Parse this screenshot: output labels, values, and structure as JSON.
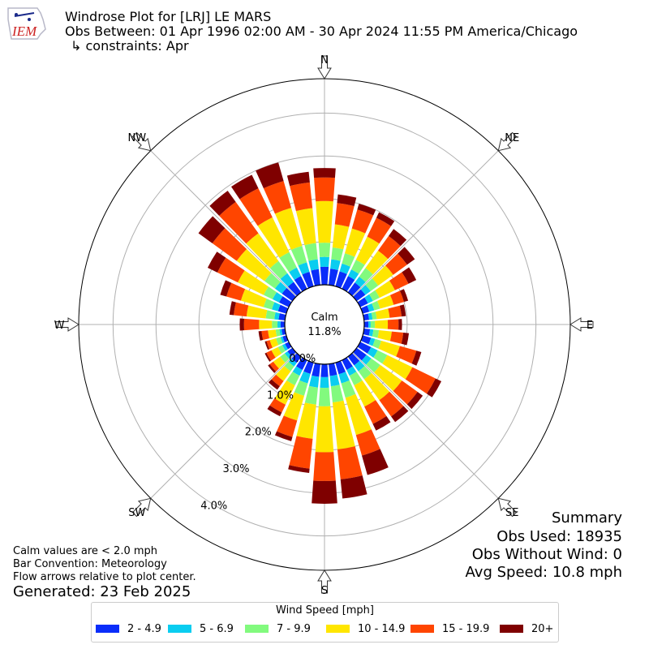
{
  "header": {
    "logo_text": "IEM",
    "title": "Windrose Plot for [LRJ] LE MARS",
    "obs_between": "Obs Between: 01 Apr 1996 02:00 AM - 30 Apr 2024 11:55 PM America/Chicago",
    "constraints": "↳ constraints: Apr"
  },
  "summary": {
    "heading": "Summary",
    "obs_used": "Obs Used: 18935",
    "obs_without_wind": "Obs Without Wind: 0",
    "avg_speed": "Avg Speed: 10.8 mph"
  },
  "footnotes": {
    "calm_note": "Calm values are < 2.0 mph",
    "bar_convention": "Bar Convention: Meteorology",
    "flow_arrows": "Flow arrows relative to plot center.",
    "generated": "Generated: 23 Feb 2025"
  },
  "legend": {
    "title": "Wind Speed [mph]",
    "bins": [
      {
        "label": "2 - 4.9",
        "color": "#0a2dfa"
      },
      {
        "label": "5 - 6.9",
        "color": "#0acdf0"
      },
      {
        "label": "7 - 9.9",
        "color": "#82fa7e"
      },
      {
        "label": "10 - 14.9",
        "color": "#ffe600"
      },
      {
        "label": "15 - 19.9",
        "color": "#ff4500"
      },
      {
        "label": "20+",
        "color": "#7f0000"
      }
    ]
  },
  "chart_data": {
    "type": "windrose",
    "calm_label": "Calm",
    "calm_value": "11.8%",
    "compass_labels": [
      {
        "label": "N",
        "dir": 0
      },
      {
        "label": "NE",
        "dir": 45
      },
      {
        "label": "E",
        "dir": 90
      },
      {
        "label": "SE",
        "dir": 135
      },
      {
        "label": "S",
        "dir": 180
      },
      {
        "label": "SW",
        "dir": 225
      },
      {
        "label": "W",
        "dir": 270
      },
      {
        "label": "NW",
        "dir": 315
      }
    ],
    "radial_ticks": [
      "0.0%",
      "1.0%",
      "2.0%",
      "3.0%",
      "4.0%"
    ],
    "radial_max": 4.8,
    "directions": [
      0,
      10,
      20,
      30,
      40,
      50,
      60,
      70,
      80,
      90,
      100,
      110,
      120,
      130,
      140,
      150,
      160,
      170,
      180,
      190,
      200,
      210,
      220,
      230,
      240,
      250,
      260,
      270,
      280,
      290,
      300,
      310,
      320,
      330,
      340,
      350
    ],
    "cumulative": [
      [
        0.42,
        0.65,
        0.98,
        1.95,
        2.5,
        2.72
      ],
      [
        0.38,
        0.6,
        0.88,
        1.42,
        1.92,
        2.12
      ],
      [
        0.36,
        0.55,
        0.8,
        1.4,
        1.86,
        2.0
      ],
      [
        0.33,
        0.5,
        0.75,
        1.35,
        1.84,
        1.98
      ],
      [
        0.28,
        0.45,
        0.7,
        1.2,
        1.62,
        1.82
      ],
      [
        0.25,
        0.4,
        0.62,
        1.05,
        1.45,
        1.67
      ],
      [
        0.2,
        0.33,
        0.5,
        0.9,
        1.25,
        1.45
      ],
      [
        0.16,
        0.28,
        0.42,
        0.75,
        1.0,
        1.1
      ],
      [
        0.12,
        0.2,
        0.3,
        0.6,
        0.88,
        0.98
      ],
      [
        0.1,
        0.15,
        0.25,
        0.55,
        0.8,
        0.88
      ],
      [
        0.14,
        0.22,
        0.35,
        0.65,
        0.92,
        1.05
      ],
      [
        0.2,
        0.3,
        0.45,
        0.9,
        1.3,
        1.42
      ],
      [
        0.28,
        0.45,
        0.7,
        1.35,
        1.95,
        2.1
      ],
      [
        0.28,
        0.42,
        0.68,
        1.3,
        1.75,
        1.9
      ],
      [
        0.25,
        0.42,
        0.65,
        1.25,
        1.72,
        1.88
      ],
      [
        0.25,
        0.4,
        0.65,
        1.2,
        1.65,
        1.82
      ],
      [
        0.28,
        0.5,
        0.85,
        1.75,
        2.25,
        2.72
      ],
      [
        0.28,
        0.52,
        0.9,
        2.0,
        2.7,
        3.15
      ],
      [
        0.3,
        0.55,
        0.98,
        2.05,
        2.72,
        3.25
      ],
      [
        0.3,
        0.55,
        0.95,
        1.75,
        2.45,
        2.55
      ],
      [
        0.27,
        0.5,
        0.8,
        1.4,
        1.8,
        1.9
      ],
      [
        0.25,
        0.4,
        0.65,
        1.15,
        1.35,
        1.45
      ],
      [
        0.18,
        0.28,
        0.42,
        0.7,
        0.85,
        0.95
      ],
      [
        0.14,
        0.22,
        0.35,
        0.55,
        0.65,
        0.7
      ],
      [
        0.1,
        0.17,
        0.28,
        0.45,
        0.58,
        0.62
      ],
      [
        0.09,
        0.14,
        0.25,
        0.4,
        0.48,
        0.52
      ],
      [
        0.08,
        0.13,
        0.22,
        0.4,
        0.55,
        0.62
      ],
      [
        0.1,
        0.17,
        0.3,
        0.6,
        0.95,
        1.05
      ],
      [
        0.15,
        0.25,
        0.45,
        0.9,
        1.2,
        1.3
      ],
      [
        0.2,
        0.35,
        0.55,
        1.1,
        1.45,
        1.6
      ],
      [
        0.25,
        0.42,
        0.65,
        1.32,
        1.85,
        2.1
      ],
      [
        0.3,
        0.5,
        0.8,
        1.6,
        2.3,
        2.7
      ],
      [
        0.3,
        0.55,
        0.9,
        1.7,
        2.6,
        2.92
      ],
      [
        0.33,
        0.55,
        0.95,
        1.85,
        2.6,
        2.95
      ],
      [
        0.35,
        0.58,
        0.98,
        1.9,
        2.55,
        3.0
      ],
      [
        0.37,
        0.6,
        0.98,
        1.8,
        2.4,
        2.65
      ]
    ]
  }
}
